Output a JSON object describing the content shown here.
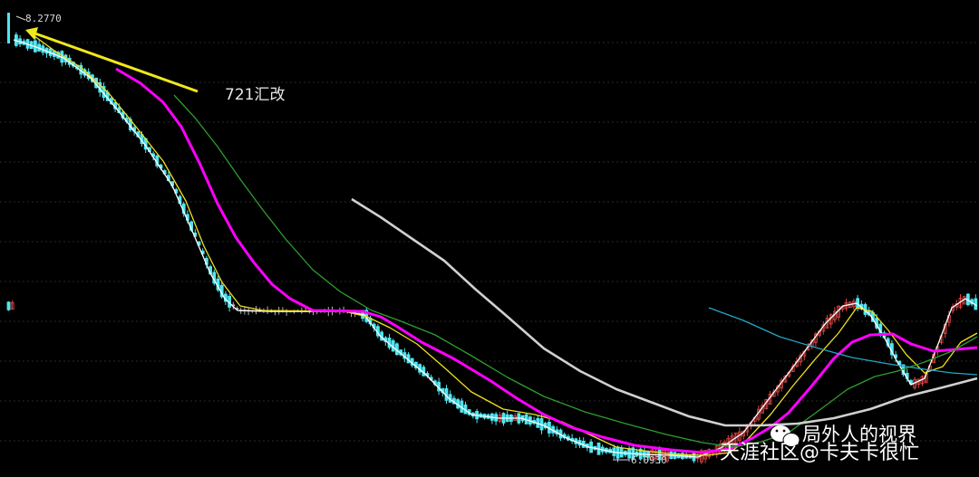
{
  "chart_data": {
    "type": "candlestick",
    "symbol": "",
    "title": "",
    "max_label": "8.2770",
    "min_label": "6.0930",
    "y_range": [
      6.093,
      8.277
    ],
    "annotation": {
      "text": "721汇改"
    },
    "grid": "dashed-horizontal",
    "moving_averages": [
      {
        "color": "#ffffff",
        "points": [
          [
            15,
            44
          ],
          [
            40,
            52
          ],
          [
            70,
            64
          ],
          [
            100,
            86
          ],
          [
            130,
            122
          ],
          [
            160,
            160
          ],
          [
            190,
            205
          ],
          [
            215,
            262
          ],
          [
            232,
            302
          ],
          [
            248,
            330
          ],
          [
            262,
            343
          ],
          [
            300,
            344
          ],
          [
            380,
            344
          ],
          [
            402,
            348
          ],
          [
            420,
            372
          ],
          [
            445,
            393
          ],
          [
            470,
            414
          ],
          [
            495,
            440
          ],
          [
            520,
            458
          ],
          [
            550,
            462
          ],
          [
            575,
            462
          ],
          [
            600,
            470
          ],
          [
            625,
            484
          ],
          [
            650,
            494
          ],
          [
            680,
            500
          ],
          [
            710,
            502
          ],
          [
            740,
            503
          ],
          [
            770,
            505
          ],
          [
            795,
            495
          ],
          [
            820,
            478
          ],
          [
            845,
            445
          ],
          [
            870,
            412
          ],
          [
            890,
            385
          ],
          [
            910,
            358
          ],
          [
            930,
            338
          ],
          [
            945,
            335
          ],
          [
            960,
            348
          ],
          [
            975,
            372
          ],
          [
            990,
            400
          ],
          [
            1005,
            425
          ],
          [
            1020,
            418
          ],
          [
            1035,
            380
          ],
          [
            1050,
            340
          ],
          [
            1065,
            330
          ],
          [
            1078,
            338
          ]
        ]
      },
      {
        "color": "#f0e020",
        "points": [
          [
            30,
            34
          ],
          [
            60,
            56
          ],
          [
            90,
            75
          ],
          [
            120,
            103
          ],
          [
            150,
            140
          ],
          [
            180,
            178
          ],
          [
            205,
            222
          ],
          [
            225,
            272
          ],
          [
            245,
            312
          ],
          [
            265,
            338
          ],
          [
            290,
            343
          ],
          [
            380,
            344
          ],
          [
            405,
            350
          ],
          [
            430,
            362
          ],
          [
            460,
            380
          ],
          [
            490,
            406
          ],
          [
            520,
            433
          ],
          [
            555,
            452
          ],
          [
            590,
            458
          ],
          [
            620,
            466
          ],
          [
            650,
            480
          ],
          [
            680,
            494
          ],
          [
            710,
            498
          ],
          [
            745,
            502
          ],
          [
            780,
            503
          ],
          [
            805,
            500
          ],
          [
            825,
            485
          ],
          [
            850,
            458
          ],
          [
            875,
            426
          ],
          [
            900,
            396
          ],
          [
            925,
            368
          ],
          [
            945,
            340
          ],
          [
            962,
            344
          ],
          [
            980,
            365
          ],
          [
            1000,
            392
          ],
          [
            1020,
            412
          ],
          [
            1040,
            405
          ],
          [
            1060,
            378
          ],
          [
            1078,
            368
          ]
        ]
      },
      {
        "color": "#ff00ff",
        "points": [
          [
            128,
            76
          ],
          [
            155,
            92
          ],
          [
            180,
            113
          ],
          [
            200,
            140
          ],
          [
            220,
            180
          ],
          [
            240,
            225
          ],
          [
            260,
            262
          ],
          [
            280,
            290
          ],
          [
            300,
            314
          ],
          [
            320,
            330
          ],
          [
            345,
            343
          ],
          [
            400,
            344
          ],
          [
            420,
            350
          ],
          [
            440,
            362
          ],
          [
            465,
            378
          ],
          [
            500,
            396
          ],
          [
            540,
            420
          ],
          [
            570,
            440
          ],
          [
            600,
            458
          ],
          [
            630,
            472
          ],
          [
            665,
            483
          ],
          [
            700,
            492
          ],
          [
            740,
            497
          ],
          [
            775,
            500
          ],
          [
            805,
            496
          ],
          [
            830,
            484
          ],
          [
            850,
            472
          ],
          [
            870,
            456
          ],
          [
            895,
            427
          ],
          [
            920,
            396
          ],
          [
            940,
            378
          ],
          [
            960,
            370
          ],
          [
            985,
            369
          ],
          [
            1005,
            380
          ],
          [
            1030,
            388
          ],
          [
            1055,
            386
          ],
          [
            1078,
            384
          ]
        ]
      },
      {
        "color": "#2e9e2e",
        "points": [
          [
            192,
            105
          ],
          [
            215,
            130
          ],
          [
            240,
            162
          ],
          [
            265,
            198
          ],
          [
            290,
            232
          ],
          [
            315,
            264
          ],
          [
            345,
            298
          ],
          [
            375,
            322
          ],
          [
            410,
            343
          ],
          [
            440,
            354
          ],
          [
            480,
            370
          ],
          [
            520,
            393
          ],
          [
            560,
            417
          ],
          [
            600,
            438
          ],
          [
            645,
            455
          ],
          [
            690,
            468
          ],
          [
            735,
            480
          ],
          [
            775,
            489
          ],
          [
            810,
            494
          ],
          [
            840,
            488
          ],
          [
            870,
            478
          ],
          [
            900,
            456
          ],
          [
            935,
            430
          ],
          [
            965,
            416
          ],
          [
            990,
            410
          ],
          [
            1020,
            400
          ],
          [
            1050,
            388
          ],
          [
            1078,
            372
          ]
        ]
      },
      {
        "color": "#d0d0d0",
        "points": [
          [
            388,
            220
          ],
          [
            420,
            240
          ],
          [
            455,
            264
          ],
          [
            490,
            288
          ],
          [
            525,
            320
          ],
          [
            560,
            350
          ],
          [
            600,
            385
          ],
          [
            640,
            410
          ],
          [
            680,
            430
          ],
          [
            720,
            445
          ],
          [
            760,
            460
          ],
          [
            800,
            470
          ],
          [
            840,
            470
          ],
          [
            880,
            468
          ],
          [
            920,
            462
          ],
          [
            960,
            452
          ],
          [
            1000,
            438
          ],
          [
            1040,
            428
          ],
          [
            1078,
            418
          ]
        ]
      },
      {
        "color": "#26a6c8",
        "points": [
          [
            782,
            340
          ],
          [
            820,
            354
          ],
          [
            860,
            372
          ],
          [
            900,
            384
          ],
          [
            940,
            395
          ],
          [
            980,
            402
          ],
          [
            1020,
            408
          ],
          [
            1050,
            412
          ],
          [
            1078,
            414
          ]
        ]
      }
    ]
  },
  "watermark": {
    "line1": "局外人的视界",
    "line2": "天涯社区@卡夫卡很忙"
  }
}
